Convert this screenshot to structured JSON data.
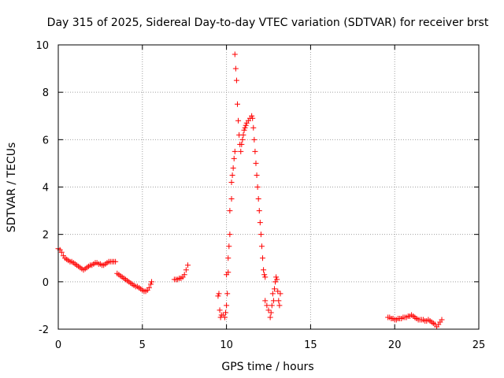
{
  "chart_data": {
    "type": "scatter",
    "title": "Day 315 of 2025, Sidereal Day-to-day VTEC variation (SDTVAR) for receiver brst",
    "xlabel": "GPS time / hours",
    "ylabel": "SDTVAR / TECUs",
    "xlim": [
      0,
      25
    ],
    "ylim": [
      -2,
      10
    ],
    "xticks": [
      0,
      5,
      10,
      15,
      20,
      25
    ],
    "yticks": [
      -2,
      0,
      2,
      4,
      6,
      8,
      10
    ],
    "grid": true,
    "marker": "+",
    "series_color": "#ff0000",
    "series": [
      {
        "name": "SDTVAR",
        "points": [
          [
            0.0,
            1.4
          ],
          [
            0.1,
            1.35
          ],
          [
            0.2,
            1.25
          ],
          [
            0.3,
            1.1
          ],
          [
            0.4,
            1.0
          ],
          [
            0.5,
            0.95
          ],
          [
            0.6,
            0.9
          ],
          [
            0.7,
            0.85
          ],
          [
            0.8,
            0.85
          ],
          [
            0.9,
            0.8
          ],
          [
            1.0,
            0.75
          ],
          [
            1.1,
            0.7
          ],
          [
            1.2,
            0.65
          ],
          [
            1.3,
            0.6
          ],
          [
            1.4,
            0.55
          ],
          [
            1.5,
            0.5
          ],
          [
            1.6,
            0.55
          ],
          [
            1.7,
            0.6
          ],
          [
            1.8,
            0.65
          ],
          [
            1.9,
            0.7
          ],
          [
            2.0,
            0.7
          ],
          [
            2.1,
            0.75
          ],
          [
            2.2,
            0.8
          ],
          [
            2.3,
            0.8
          ],
          [
            2.4,
            0.75
          ],
          [
            2.5,
            0.75
          ],
          [
            2.6,
            0.7
          ],
          [
            2.7,
            0.7
          ],
          [
            2.8,
            0.75
          ],
          [
            2.9,
            0.8
          ],
          [
            3.0,
            0.85
          ],
          [
            3.1,
            0.85
          ],
          [
            3.2,
            0.85
          ],
          [
            3.3,
            0.85
          ],
          [
            3.4,
            0.85
          ],
          [
            3.5,
            0.35
          ],
          [
            3.6,
            0.3
          ],
          [
            3.7,
            0.25
          ],
          [
            3.8,
            0.2
          ],
          [
            3.9,
            0.15
          ],
          [
            4.0,
            0.1
          ],
          [
            4.1,
            0.05
          ],
          [
            4.2,
            0.0
          ],
          [
            4.3,
            -0.05
          ],
          [
            4.4,
            -0.1
          ],
          [
            4.5,
            -0.15
          ],
          [
            4.6,
            -0.2
          ],
          [
            4.7,
            -0.2
          ],
          [
            4.8,
            -0.25
          ],
          [
            4.9,
            -0.3
          ],
          [
            5.0,
            -0.35
          ],
          [
            5.1,
            -0.4
          ],
          [
            5.2,
            -0.4
          ],
          [
            5.3,
            -0.35
          ],
          [
            5.4,
            -0.25
          ],
          [
            5.5,
            -0.1
          ],
          [
            5.55,
            0.0
          ],
          [
            6.9,
            0.1
          ],
          [
            7.0,
            0.1
          ],
          [
            7.1,
            0.1
          ],
          [
            7.2,
            0.15
          ],
          [
            7.3,
            0.15
          ],
          [
            7.4,
            0.2
          ],
          [
            7.5,
            0.3
          ],
          [
            7.6,
            0.5
          ],
          [
            7.7,
            0.7
          ],
          [
            9.5,
            -0.6
          ],
          [
            9.55,
            -0.5
          ],
          [
            9.6,
            -1.2
          ],
          [
            9.65,
            -1.5
          ],
          [
            9.7,
            -1.4
          ],
          [
            9.8,
            -1.4
          ],
          [
            9.9,
            -1.5
          ],
          [
            9.95,
            -1.3
          ],
          [
            10.0,
            -1.0
          ],
          [
            10.0,
            0.3
          ],
          [
            10.05,
            -0.5
          ],
          [
            10.1,
            0.4
          ],
          [
            10.1,
            1.0
          ],
          [
            10.15,
            1.5
          ],
          [
            10.2,
            2.0
          ],
          [
            10.2,
            3.0
          ],
          [
            10.3,
            3.5
          ],
          [
            10.3,
            4.2
          ],
          [
            10.35,
            4.5
          ],
          [
            10.4,
            4.8
          ],
          [
            10.45,
            5.2
          ],
          [
            10.5,
            5.5
          ],
          [
            10.5,
            9.6
          ],
          [
            10.55,
            9.0
          ],
          [
            10.6,
            8.5
          ],
          [
            10.65,
            7.5
          ],
          [
            10.7,
            6.8
          ],
          [
            10.75,
            6.2
          ],
          [
            10.8,
            5.8
          ],
          [
            10.85,
            5.5
          ],
          [
            10.9,
            5.8
          ],
          [
            10.95,
            6.0
          ],
          [
            11.0,
            6.2
          ],
          [
            11.05,
            6.4
          ],
          [
            11.1,
            6.5
          ],
          [
            11.15,
            6.6
          ],
          [
            11.2,
            6.7
          ],
          [
            11.3,
            6.8
          ],
          [
            11.4,
            6.9
          ],
          [
            11.5,
            7.0
          ],
          [
            11.55,
            6.9
          ],
          [
            11.6,
            6.5
          ],
          [
            11.65,
            6.0
          ],
          [
            11.7,
            5.5
          ],
          [
            11.75,
            5.0
          ],
          [
            11.8,
            4.5
          ],
          [
            11.85,
            4.0
          ],
          [
            11.9,
            3.5
          ],
          [
            11.95,
            3.0
          ],
          [
            12.0,
            2.5
          ],
          [
            12.05,
            2.0
          ],
          [
            12.1,
            1.5
          ],
          [
            12.15,
            1.0
          ],
          [
            12.2,
            0.5
          ],
          [
            12.25,
            0.3
          ],
          [
            12.3,
            0.2
          ],
          [
            12.3,
            -0.8
          ],
          [
            12.4,
            -1.0
          ],
          [
            12.5,
            -1.2
          ],
          [
            12.6,
            -1.5
          ],
          [
            12.65,
            -1.3
          ],
          [
            12.7,
            -1.0
          ],
          [
            12.75,
            -0.5
          ],
          [
            12.8,
            -0.8
          ],
          [
            12.85,
            -0.3
          ],
          [
            12.9,
            0.0
          ],
          [
            12.95,
            0.2
          ],
          [
            13.0,
            0.1
          ],
          [
            13.05,
            -0.4
          ],
          [
            13.1,
            -0.8
          ],
          [
            13.15,
            -1.0
          ],
          [
            13.2,
            -0.5
          ],
          [
            19.6,
            -1.5
          ],
          [
            19.7,
            -1.5
          ],
          [
            19.8,
            -1.55
          ],
          [
            19.9,
            -1.55
          ],
          [
            20.0,
            -1.6
          ],
          [
            20.1,
            -1.6
          ],
          [
            20.2,
            -1.55
          ],
          [
            20.3,
            -1.55
          ],
          [
            20.4,
            -1.55
          ],
          [
            20.5,
            -1.5
          ],
          [
            20.6,
            -1.5
          ],
          [
            20.7,
            -1.5
          ],
          [
            20.8,
            -1.45
          ],
          [
            20.9,
            -1.45
          ],
          [
            21.0,
            -1.4
          ],
          [
            21.1,
            -1.45
          ],
          [
            21.2,
            -1.5
          ],
          [
            21.3,
            -1.55
          ],
          [
            21.4,
            -1.6
          ],
          [
            21.5,
            -1.6
          ],
          [
            21.6,
            -1.6
          ],
          [
            21.7,
            -1.6
          ],
          [
            21.8,
            -1.65
          ],
          [
            21.9,
            -1.65
          ],
          [
            22.0,
            -1.6
          ],
          [
            22.1,
            -1.65
          ],
          [
            22.2,
            -1.7
          ],
          [
            22.3,
            -1.75
          ],
          [
            22.4,
            -1.8
          ],
          [
            22.5,
            -1.9
          ],
          [
            22.6,
            -1.8
          ],
          [
            22.7,
            -1.7
          ],
          [
            22.8,
            -1.6
          ]
        ]
      }
    ]
  }
}
